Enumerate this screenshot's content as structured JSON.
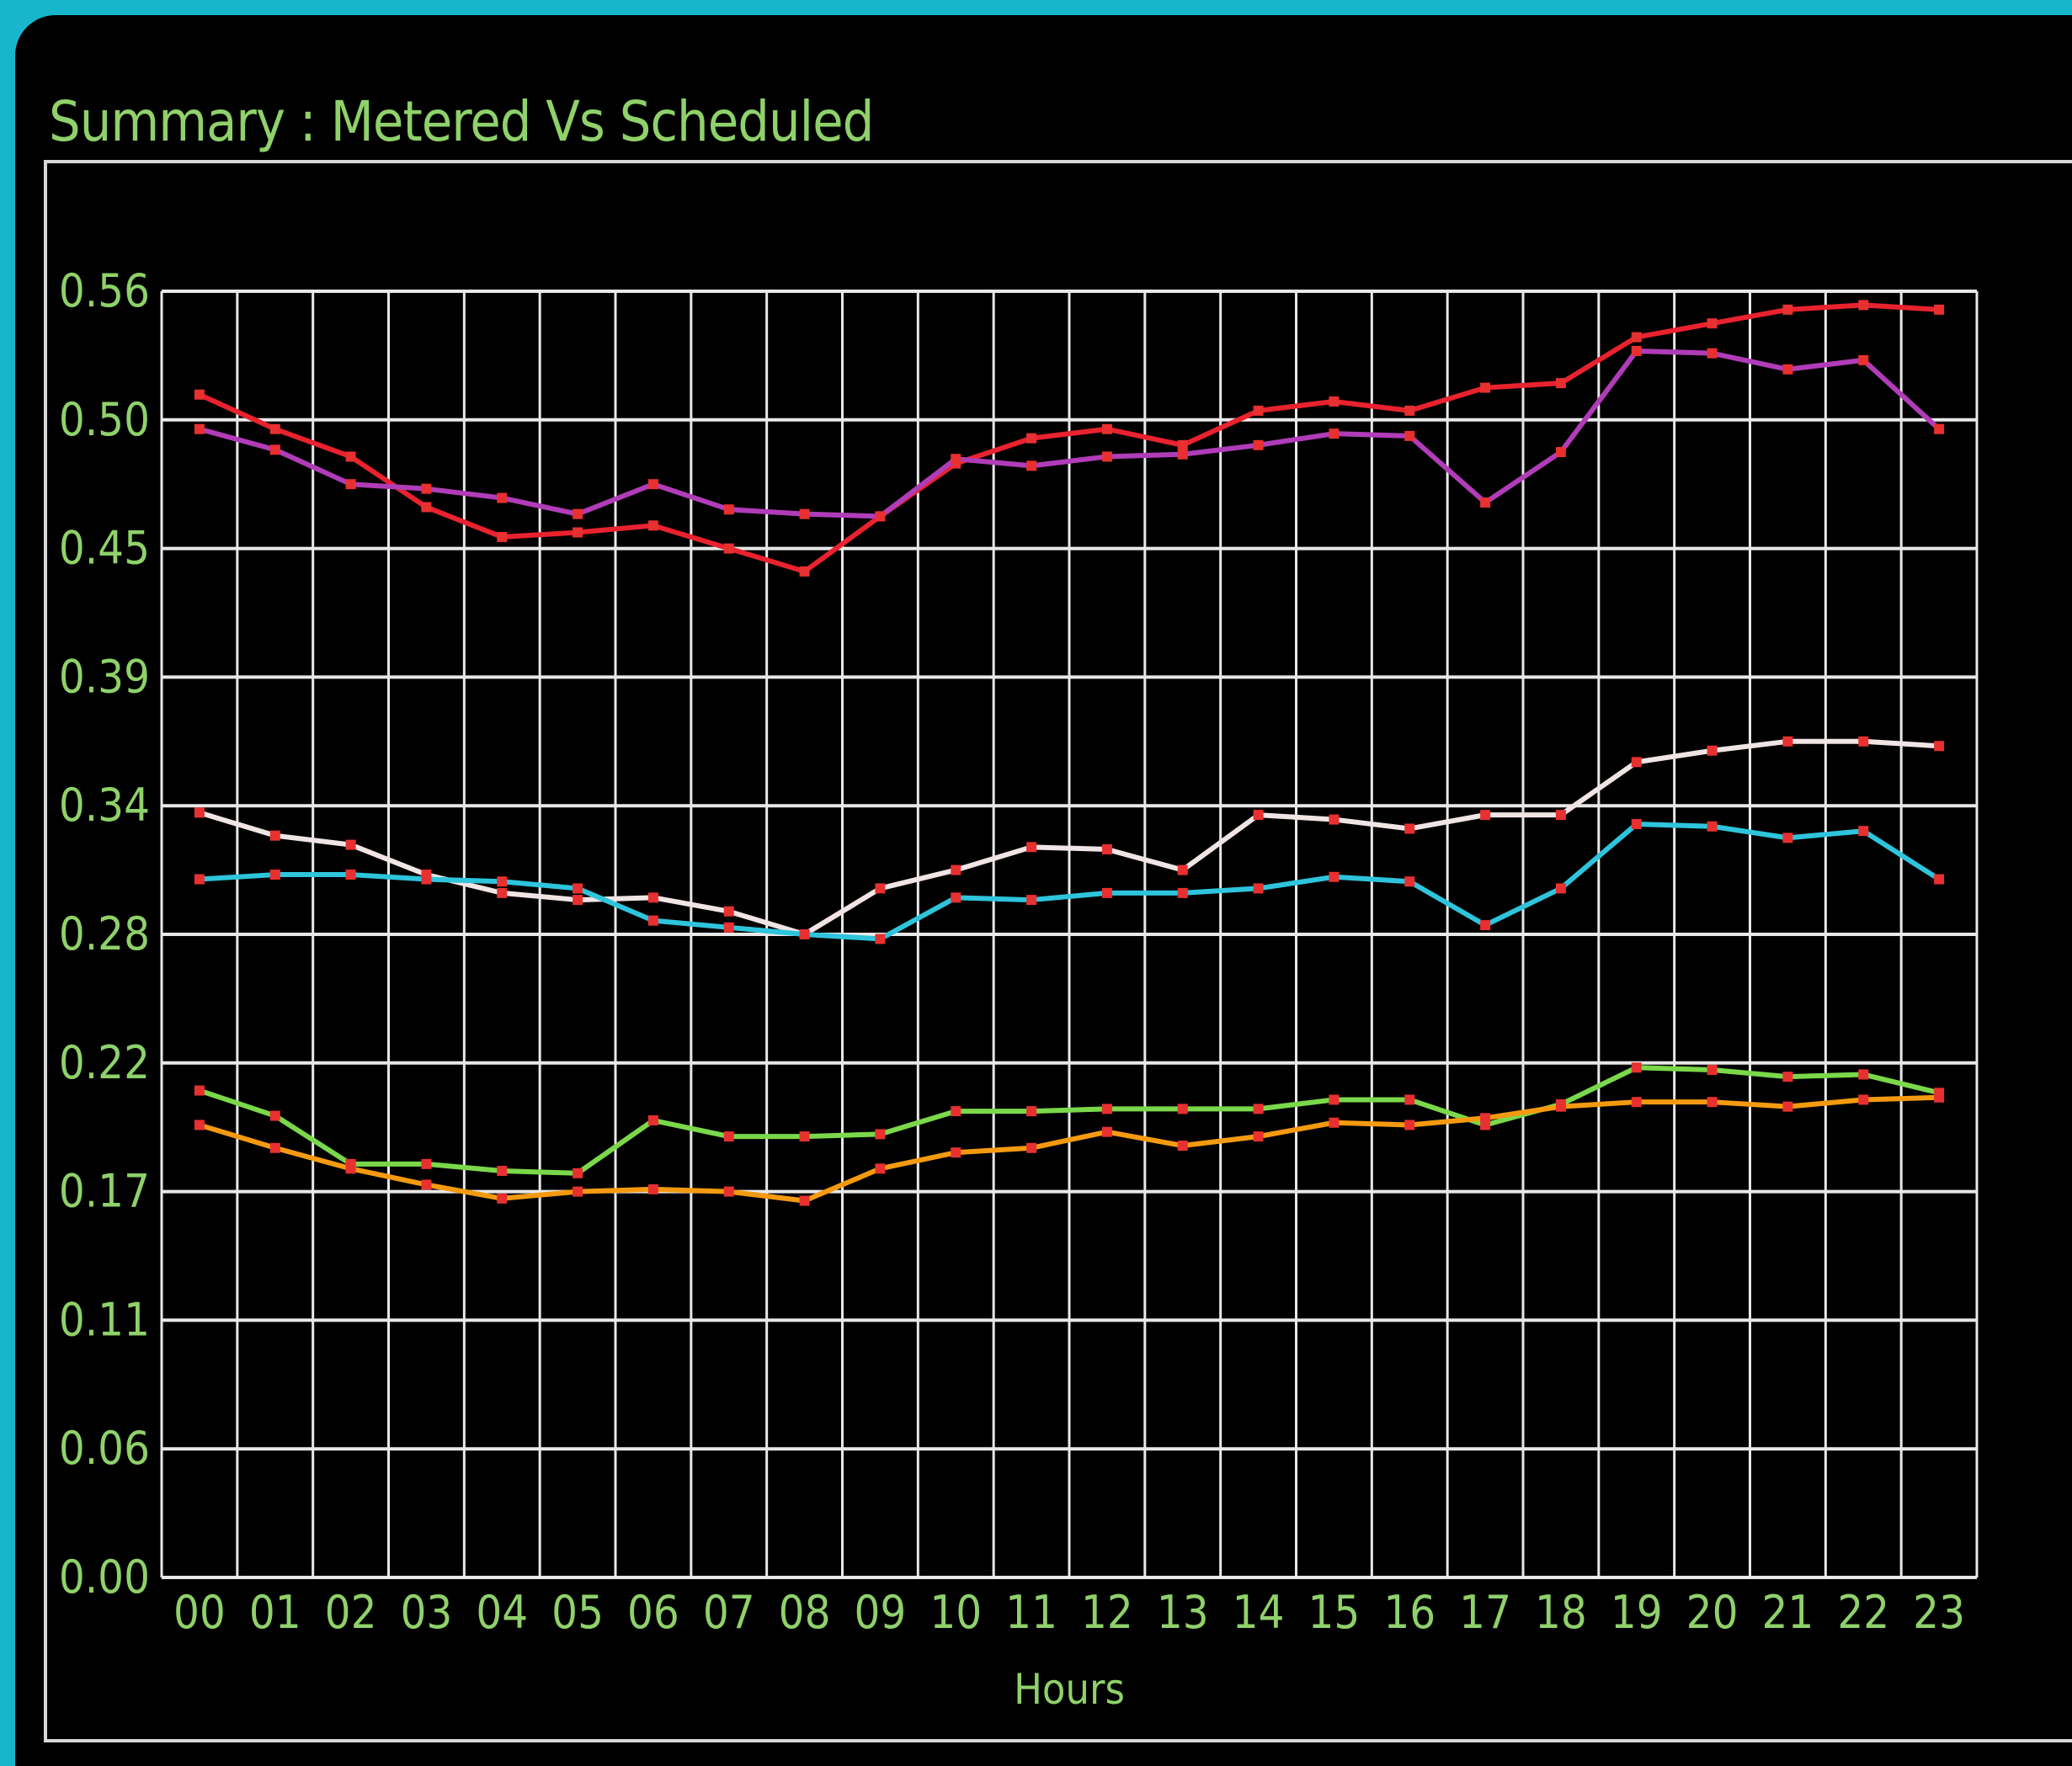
{
  "title": "Summary : Metered Vs Scheduled",
  "colors": {
    "background": "#000000",
    "frame": "#18b6cc",
    "text": "#8fd16a",
    "grid": "#e8e8e8"
  },
  "chart_data": {
    "type": "line",
    "title": "Summary : Metered Vs Scheduled",
    "xlabel": "Hours",
    "ylabel": "",
    "categories": [
      "00",
      "01",
      "02",
      "03",
      "04",
      "05",
      "06",
      "07",
      "08",
      "09",
      "10",
      "11",
      "12",
      "13",
      "14",
      "15",
      "16",
      "17",
      "18",
      "19",
      "20",
      "21",
      "22",
      "23"
    ],
    "yticks": [
      "0.00",
      "0.06",
      "0.11",
      "0.17",
      "0.22",
      "0.28",
      "0.34",
      "0.39",
      "0.45",
      "0.50",
      "0.56"
    ],
    "ylim": [
      0,
      0.56
    ],
    "grid": true,
    "series": [
      {
        "color": "#e8222e",
        "values": [
          0.515,
          0.5,
          0.488,
          0.466,
          0.453,
          0.455,
          0.458,
          0.448,
          0.438,
          0.462,
          0.485,
          0.496,
          0.5,
          0.493,
          0.508,
          0.512,
          0.508,
          0.518,
          0.52,
          0.54,
          0.546,
          0.552,
          0.554,
          0.552
        ]
      },
      {
        "color": "#b03cb8",
        "values": [
          0.5,
          0.491,
          0.476,
          0.474,
          0.47,
          0.463,
          0.476,
          0.465,
          0.463,
          0.462,
          0.487,
          0.484,
          0.488,
          0.489,
          0.493,
          0.498,
          0.497,
          0.468,
          0.49,
          0.534,
          0.533,
          0.526,
          0.53,
          0.5
        ]
      },
      {
        "color": "#f0e4e4",
        "values": [
          0.333,
          0.323,
          0.319,
          0.306,
          0.298,
          0.295,
          0.296,
          0.29,
          0.28,
          0.3,
          0.308,
          0.318,
          0.317,
          0.308,
          0.332,
          0.33,
          0.326,
          0.332,
          0.332,
          0.355,
          0.36,
          0.364,
          0.364,
          0.362
        ]
      },
      {
        "color": "#2ec4dc",
        "values": [
          0.304,
          0.306,
          0.306,
          0.304,
          0.303,
          0.3,
          0.286,
          0.283,
          0.28,
          0.278,
          0.296,
          0.295,
          0.298,
          0.298,
          0.3,
          0.305,
          0.303,
          0.284,
          0.3,
          0.328,
          0.327,
          0.322,
          0.325,
          0.304
        ]
      },
      {
        "color": "#7ad84a",
        "values": [
          0.212,
          0.201,
          0.18,
          0.18,
          0.177,
          0.176,
          0.199,
          0.192,
          0.192,
          0.193,
          0.203,
          0.203,
          0.204,
          0.204,
          0.204,
          0.208,
          0.208,
          0.197,
          0.206,
          0.222,
          0.221,
          0.218,
          0.219,
          0.211
        ]
      },
      {
        "color": "#f59a10",
        "values": [
          0.197,
          0.187,
          0.178,
          0.171,
          0.165,
          0.168,
          0.169,
          0.168,
          0.164,
          0.178,
          0.185,
          0.187,
          0.194,
          0.188,
          0.192,
          0.198,
          0.197,
          0.2,
          0.205,
          0.207,
          0.207,
          0.205,
          0.208,
          0.209
        ]
      }
    ]
  }
}
